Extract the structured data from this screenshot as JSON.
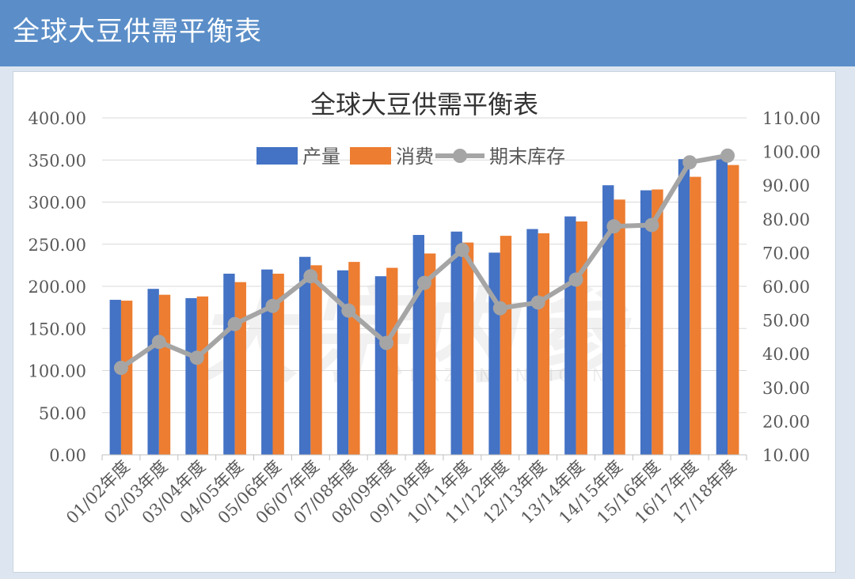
{
  "header": {
    "title": "全球大豆供需平衡表"
  },
  "watermark": {
    "text": "大宗内参",
    "sub": "DAZONGNEICAN"
  },
  "colors": {
    "production": "#4472c4",
    "consumption": "#ed7d31",
    "stock": "#a5a5a5",
    "header": "#5b8ec8"
  },
  "chart_data": {
    "type": "bar",
    "title": "全球大豆供需平衡表",
    "categories": [
      "01/02年度",
      "02/03年度",
      "03/04年度",
      "04/05年度",
      "05/06年度",
      "06/07年度",
      "07/08年度",
      "08/09年度",
      "09/10年度",
      "10/11年度",
      "11/12年度",
      "12/13年度",
      "13/14年度",
      "14/15年度",
      "15/16年度",
      "16/17年度",
      "17/18年度"
    ],
    "series": [
      {
        "name": "产量",
        "type": "bar",
        "axis": "left",
        "values": [
          184,
          197,
          186,
          215,
          220,
          235,
          219,
          212,
          261,
          265,
          240,
          268,
          283,
          320,
          314,
          351,
          352
        ]
      },
      {
        "name": "消费",
        "type": "bar",
        "axis": "left",
        "values": [
          183,
          190,
          188,
          205,
          215,
          225,
          229,
          222,
          239,
          252,
          260,
          263,
          277,
          303,
          315,
          330,
          344
        ]
      },
      {
        "name": "期末库存",
        "type": "line",
        "axis": "right",
        "values": [
          35.8,
          43.5,
          38.8,
          48.8,
          54.2,
          63.0,
          52.8,
          43.2,
          61.0,
          70.8,
          53.5,
          55.2,
          62.0,
          77.8,
          78.2,
          96.8,
          98.8
        ]
      }
    ],
    "ylim": [
      0,
      400
    ],
    "yticks": [
      "0.00",
      "50.00",
      "100.00",
      "150.00",
      "200.00",
      "250.00",
      "300.00",
      "350.00",
      "400.00"
    ],
    "y2lim": [
      10,
      110
    ],
    "y2ticks": [
      "10.00",
      "20.00",
      "30.00",
      "40.00",
      "50.00",
      "60.00",
      "70.00",
      "80.00",
      "90.00",
      "100.00",
      "110.00"
    ],
    "grid": true,
    "legend": "top-center"
  }
}
